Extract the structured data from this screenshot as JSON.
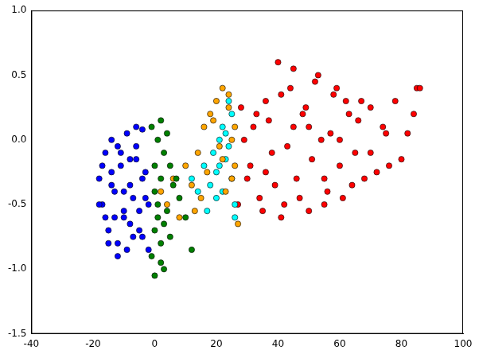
{
  "chart_data": {
    "type": "scatter",
    "marker": "circle",
    "grid": false,
    "xlim": [
      -40,
      100
    ],
    "xticks": [
      -40,
      -20,
      0,
      20,
      40,
      60,
      80,
      100
    ],
    "ylim": [
      -1.5,
      1.0
    ],
    "yticks": [
      {
        "value": -1.5,
        "label": "-1.5"
      },
      {
        "value": -1.0,
        "label": "-1.0"
      },
      {
        "value": -0.5,
        "label": "-0.5"
      },
      {
        "value": 0.0,
        "label": "0.0"
      },
      {
        "value": 0.5,
        "label": "0.5"
      },
      {
        "value": 1.0,
        "label": "1.0"
      }
    ],
    "series": [
      {
        "color": "#0000ff",
        "x": [
          -18,
          -17,
          -16,
          -15,
          -14,
          -13,
          -12,
          -11,
          -10,
          -9,
          -8,
          -7,
          -6,
          -5,
          -4,
          -3,
          -2,
          -16,
          -14,
          -12,
          -10,
          -8,
          -6,
          -4,
          -2,
          -17,
          -15,
          -13,
          -11,
          -9,
          -7,
          -5,
          -3,
          -18,
          -12,
          -8,
          -4,
          -14,
          -10,
          -6
        ],
        "values": [
          -0.3,
          -0.5,
          -0.1,
          -0.7,
          0.0,
          -0.4,
          -0.8,
          -0.2,
          -0.6,
          0.05,
          -0.35,
          -0.75,
          -0.15,
          -0.55,
          0.08,
          -0.45,
          -0.85,
          -0.6,
          -0.25,
          -0.05,
          -0.4,
          -0.65,
          0.1,
          -0.3,
          -0.5,
          -0.2,
          -0.8,
          -0.6,
          -0.1,
          -0.85,
          -0.45,
          -0.7,
          -0.25,
          -0.5,
          -0.9,
          -0.15,
          -0.75,
          -0.35,
          -0.55,
          -0.05
        ]
      },
      {
        "color": "#008000",
        "x": [
          -1,
          0,
          1,
          2,
          3,
          4,
          5,
          -1,
          0,
          1,
          2,
          3,
          0,
          1,
          2,
          4,
          6,
          8,
          10,
          12,
          3,
          5,
          7,
          0,
          2
        ],
        "values": [
          -0.9,
          -0.7,
          -0.5,
          -0.3,
          -0.1,
          0.05,
          -0.2,
          0.1,
          -0.4,
          -0.6,
          -0.8,
          -1.0,
          -0.2,
          0.0,
          0.15,
          -0.55,
          -0.35,
          -0.45,
          -0.6,
          -0.85,
          -0.65,
          -0.75,
          -0.3,
          -1.05,
          -0.95
        ]
      },
      {
        "color": "#ffa500",
        "x": [
          2,
          4,
          6,
          8,
          10,
          12,
          14,
          16,
          18,
          20,
          22,
          24,
          25,
          26,
          23,
          21,
          19,
          17,
          15,
          13,
          24,
          26,
          22,
          25,
          27
        ],
        "values": [
          -0.4,
          -0.5,
          -0.3,
          -0.6,
          -0.2,
          -0.35,
          -0.1,
          0.1,
          0.2,
          0.3,
          0.4,
          0.35,
          0.0,
          -0.2,
          -0.4,
          -0.05,
          0.15,
          -0.25,
          -0.45,
          -0.55,
          0.25,
          0.1,
          -0.15,
          -0.3,
          -0.65
        ]
      },
      {
        "color": "#00ffff",
        "x": [
          12,
          14,
          16,
          18,
          19,
          20,
          21,
          22,
          23,
          24,
          25,
          26,
          17,
          20,
          22,
          24,
          25,
          23,
          21,
          26
        ],
        "values": [
          -0.3,
          -0.4,
          -0.2,
          -0.35,
          -0.1,
          -0.25,
          0.0,
          0.1,
          -0.15,
          0.3,
          -0.3,
          -0.5,
          -0.55,
          -0.45,
          -0.4,
          -0.05,
          0.2,
          0.05,
          -0.2,
          -0.6
        ]
      },
      {
        "color": "#ff0000",
        "x": [
          27,
          28,
          30,
          32,
          34,
          36,
          38,
          40,
          42,
          44,
          46,
          48,
          50,
          52,
          54,
          56,
          58,
          60,
          62,
          64,
          66,
          68,
          70,
          72,
          74,
          76,
          78,
          80,
          82,
          85,
          29,
          31,
          33,
          35,
          37,
          39,
          41,
          43,
          45,
          47,
          49,
          51,
          53,
          55,
          57,
          59,
          61,
          63,
          65,
          67,
          41,
          45,
          50,
          55,
          60,
          70,
          75,
          84,
          86,
          36
        ],
        "values": [
          -0.5,
          0.25,
          -0.3,
          0.1,
          -0.45,
          0.3,
          -0.1,
          0.6,
          -0.5,
          0.4,
          -0.3,
          0.2,
          -0.55,
          0.45,
          0.0,
          -0.4,
          0.35,
          -0.2,
          0.3,
          -0.35,
          0.15,
          -0.3,
          0.25,
          -0.25,
          0.1,
          -0.2,
          0.3,
          -0.15,
          0.05,
          0.4,
          0.0,
          -0.2,
          0.2,
          -0.55,
          0.15,
          -0.35,
          0.35,
          -0.05,
          0.1,
          -0.45,
          0.25,
          -0.15,
          0.5,
          -0.5,
          0.05,
          0.4,
          -0.45,
          0.2,
          -0.1,
          0.3,
          -0.6,
          0.55,
          0.1,
          -0.3,
          0.0,
          -0.1,
          0.05,
          0.2,
          0.4,
          -0.25
        ]
      }
    ]
  }
}
